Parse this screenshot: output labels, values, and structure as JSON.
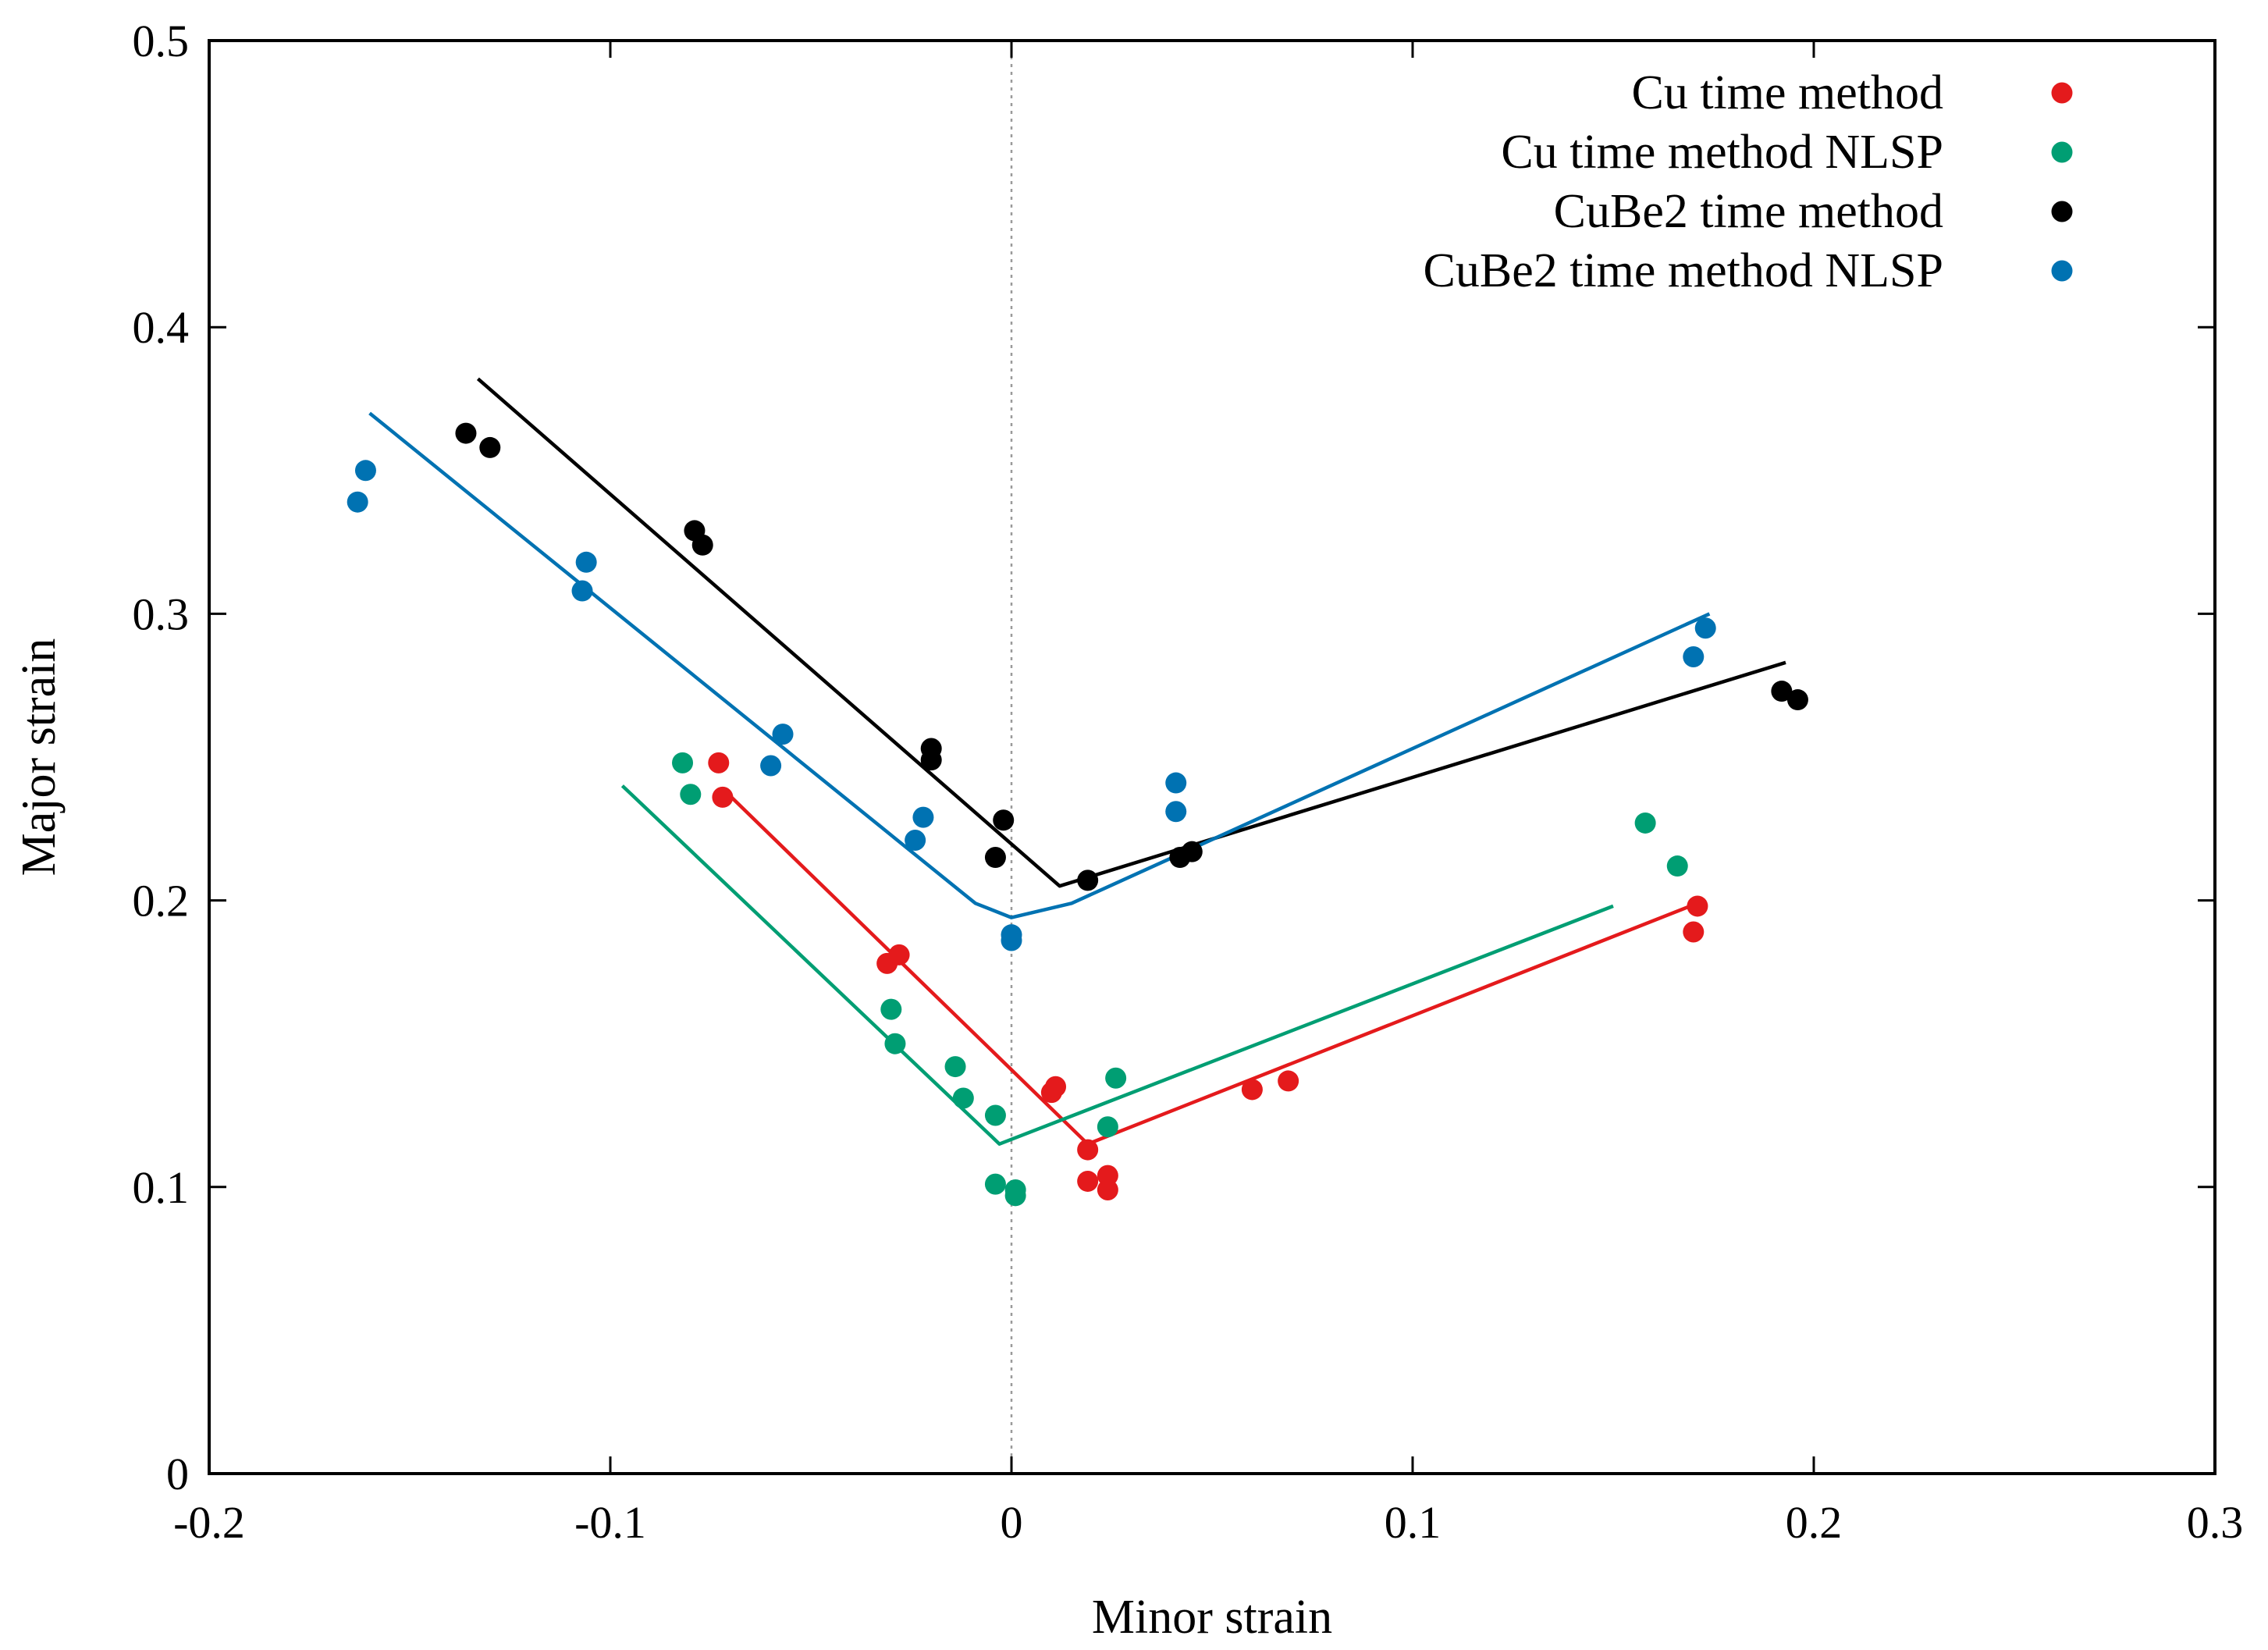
{
  "chart_data": {
    "type": "scatter",
    "title": "",
    "xlabel": "Minor strain",
    "ylabel": "Major strain",
    "xlim": [
      -0.2,
      0.3
    ],
    "ylim": [
      0,
      0.5
    ],
    "xticks": [
      -0.2,
      -0.1,
      0,
      0.1,
      0.2,
      0.3
    ],
    "xtick_labels": [
      "-0.2",
      "-0.1",
      "0",
      "0.1",
      "0.2",
      "0.3"
    ],
    "yticks": [
      0,
      0.1,
      0.2,
      0.3,
      0.4,
      0.5
    ],
    "ytick_labels": [
      "0",
      "0.1",
      "0.2",
      "0.3",
      "0.4",
      "0.5"
    ],
    "grid": false,
    "reference_line": {
      "x": 0,
      "style": "dotted"
    },
    "legend_position": "top-right",
    "series": [
      {
        "name": "Cu time method",
        "color": "#e41a1c",
        "points": [
          [
            -0.073,
            0.248
          ],
          [
            -0.072,
            0.236
          ],
          [
            -0.031,
            0.178
          ],
          [
            -0.028,
            0.181
          ],
          [
            0.01,
            0.133
          ],
          [
            0.011,
            0.135
          ],
          [
            0.019,
            0.113
          ],
          [
            0.019,
            0.102
          ],
          [
            0.024,
            0.104
          ],
          [
            0.024,
            0.099
          ],
          [
            0.06,
            0.134
          ],
          [
            0.069,
            0.137
          ],
          [
            0.171,
            0.198
          ],
          [
            0.17,
            0.189
          ]
        ],
        "fit": [
          [
            -0.072,
            0.239
          ],
          [
            0.019,
            0.115
          ],
          [
            0.171,
            0.199
          ]
        ]
      },
      {
        "name": "Cu time method NLSP",
        "color": "#009e73",
        "points": [
          [
            -0.082,
            0.248
          ],
          [
            -0.08,
            0.237
          ],
          [
            -0.03,
            0.162
          ],
          [
            -0.029,
            0.15
          ],
          [
            -0.014,
            0.142
          ],
          [
            -0.012,
            0.131
          ],
          [
            -0.004,
            0.125
          ],
          [
            -0.004,
            0.101
          ],
          [
            0.001,
            0.099
          ],
          [
            0.001,
            0.097
          ],
          [
            0.024,
            0.121
          ],
          [
            0.026,
            0.138
          ],
          [
            0.158,
            0.227
          ],
          [
            0.166,
            0.212
          ]
        ],
        "fit": [
          [
            -0.097,
            0.24
          ],
          [
            -0.003,
            0.115
          ],
          [
            0.15,
            0.198
          ]
        ]
      },
      {
        "name": "CuBe2 time method",
        "color": "#000000",
        "points": [
          [
            -0.136,
            0.363
          ],
          [
            -0.13,
            0.358
          ],
          [
            -0.079,
            0.329
          ],
          [
            -0.077,
            0.324
          ],
          [
            -0.02,
            0.253
          ],
          [
            -0.02,
            0.249
          ],
          [
            -0.002,
            0.228
          ],
          [
            -0.004,
            0.215
          ],
          [
            0.019,
            0.207
          ],
          [
            0.042,
            0.215
          ],
          [
            0.045,
            0.217
          ],
          [
            0.192,
            0.273
          ],
          [
            0.196,
            0.27
          ]
        ],
        "fit": [
          [
            -0.133,
            0.382
          ],
          [
            0.012,
            0.205
          ],
          [
            0.193,
            0.283
          ]
        ]
      },
      {
        "name": "CuBe2 time method NLSP",
        "color": "#0072b2",
        "points": [
          [
            -0.163,
            0.339
          ],
          [
            -0.161,
            0.35
          ],
          [
            -0.107,
            0.308
          ],
          [
            -0.106,
            0.318
          ],
          [
            -0.06,
            0.247
          ],
          [
            -0.057,
            0.258
          ],
          [
            -0.024,
            0.221
          ],
          [
            -0.022,
            0.229
          ],
          [
            0.0,
            0.188
          ],
          [
            0.0,
            0.186
          ],
          [
            0.041,
            0.231
          ],
          [
            0.041,
            0.241
          ],
          [
            0.17,
            0.285
          ],
          [
            0.173,
            0.295
          ]
        ],
        "fit": [
          [
            -0.16,
            0.37
          ],
          [
            -0.009,
            0.199
          ],
          [
            0.0,
            0.194
          ],
          [
            0.015,
            0.199
          ],
          [
            0.174,
            0.3
          ]
        ]
      }
    ]
  }
}
